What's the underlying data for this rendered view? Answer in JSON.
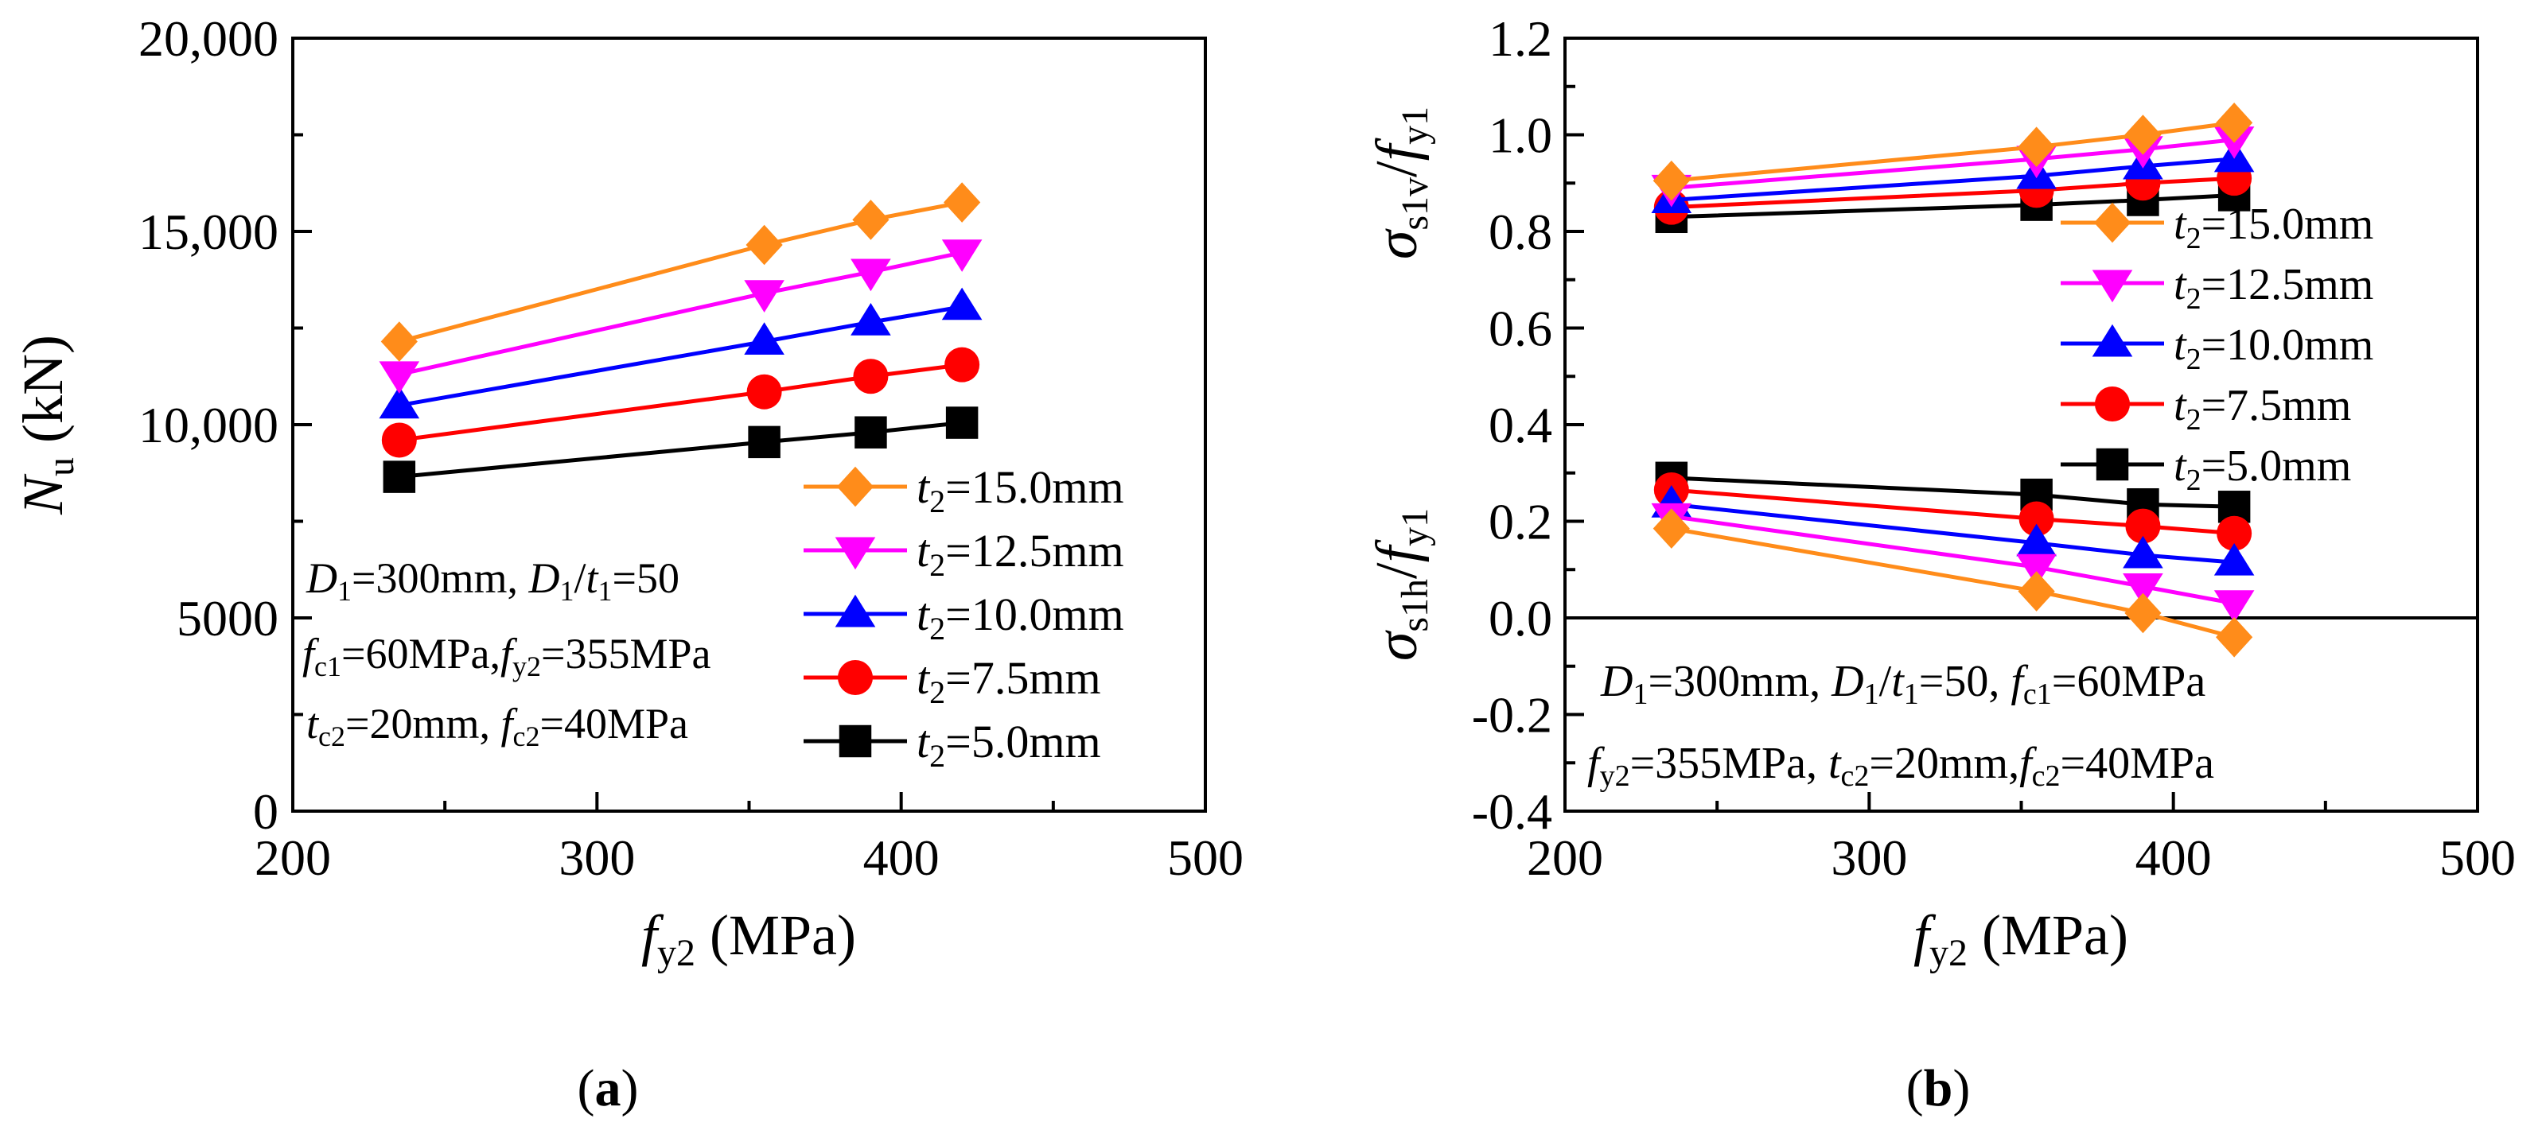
{
  "colors": {
    "t15": "#FF8C1A",
    "t125": "#FF00FF",
    "t10": "#0000FF",
    "t75": "#FF0000",
    "t5": "#000000"
  },
  "chart_data": [
    {
      "type": "line",
      "panel_label": "a",
      "xlabel": "f_y2 (MPa)",
      "ylabel": "N_u (kN)",
      "xlim": [
        200,
        500
      ],
      "ylim": [
        0,
        20000
      ],
      "xticks": [
        "200",
        "300",
        "400",
        "500"
      ],
      "yticks": [
        "0",
        "5000",
        "10,000",
        "15,000",
        "20,000"
      ],
      "x": [
        235,
        355,
        390,
        420
      ],
      "series": [
        {
          "name": "t2=15.0mm",
          "t2": "15.0mm",
          "color_key": "t15",
          "marker": "diamond",
          "values": [
            12150,
            14650,
            15300,
            15750
          ]
        },
        {
          "name": "t2=12.5mm",
          "t2": "12.5mm",
          "color_key": "t125",
          "marker": "triangle-down",
          "values": [
            11300,
            13400,
            13950,
            14450
          ]
        },
        {
          "name": "t2=10.0mm",
          "t2": "10.0mm",
          "color_key": "t10",
          "marker": "triangle-up",
          "values": [
            10500,
            12150,
            12650,
            13050
          ]
        },
        {
          "name": "t2=7.5mm",
          "t2": "7.5mm",
          "color_key": "t75",
          "marker": "circle",
          "values": [
            9600,
            10850,
            11250,
            11550
          ]
        },
        {
          "name": "t2=5.0mm",
          "t2": "5.0mm",
          "color_key": "t5",
          "marker": "square",
          "values": [
            8650,
            9550,
            9800,
            10050
          ]
        }
      ],
      "annotation": {
        "d1": "300mm",
        "d1t1": "50",
        "fc1": "60MPa",
        "fy2": "355MPa",
        "tc2": "20mm",
        "fc2": "40MPa"
      }
    },
    {
      "type": "line",
      "panel_label": "b",
      "xlabel": "f_y2 (MPa)",
      "ylabel_top": "σ_s1v/f_y1",
      "ylabel_bottom": "σ_s1h/f_y1",
      "xlim": [
        200,
        500
      ],
      "ylim": [
        -0.4,
        1.2
      ],
      "xticks": [
        "200",
        "300",
        "400",
        "500"
      ],
      "yticks": [
        "-0.4",
        "-0.2",
        "0.0",
        "0.2",
        "0.4",
        "0.6",
        "0.8",
        "1.0",
        "1.2"
      ],
      "x": [
        235,
        355,
        390,
        420
      ],
      "series_vertical": [
        {
          "name": "t2=15.0mm",
          "color_key": "t15",
          "marker": "diamond",
          "values": [
            0.905,
            0.975,
            1.0,
            1.025
          ]
        },
        {
          "name": "t2=12.5mm",
          "color_key": "t125",
          "marker": "triangle-down",
          "values": [
            0.89,
            0.95,
            0.97,
            0.99
          ]
        },
        {
          "name": "t2=10.0mm",
          "color_key": "t10",
          "marker": "triangle-up",
          "values": [
            0.865,
            0.915,
            0.935,
            0.95
          ]
        },
        {
          "name": "t2=7.5mm",
          "color_key": "t75",
          "marker": "circle",
          "values": [
            0.85,
            0.885,
            0.9,
            0.91
          ]
        },
        {
          "name": "t2=5.0mm",
          "color_key": "t5",
          "marker": "square",
          "values": [
            0.83,
            0.855,
            0.865,
            0.875
          ]
        }
      ],
      "series_hoop": [
        {
          "name": "t2=15.0mm",
          "color_key": "t15",
          "marker": "diamond",
          "values": [
            0.185,
            0.055,
            0.01,
            -0.04
          ]
        },
        {
          "name": "t2=12.5mm",
          "color_key": "t125",
          "marker": "triangle-down",
          "values": [
            0.21,
            0.105,
            0.065,
            0.03
          ]
        },
        {
          "name": "t2=10.0mm",
          "color_key": "t10",
          "marker": "triangle-up",
          "values": [
            0.235,
            0.155,
            0.13,
            0.115
          ]
        },
        {
          "name": "t2=7.5mm",
          "color_key": "t75",
          "marker": "circle",
          "values": [
            0.265,
            0.205,
            0.19,
            0.175
          ]
        },
        {
          "name": "t2=5.0mm",
          "color_key": "t5",
          "marker": "square",
          "values": [
            0.29,
            0.255,
            0.235,
            0.23
          ]
        }
      ],
      "annotation": {
        "d1": "300mm",
        "d1t1": "50",
        "fc1": "60MPa",
        "fy2": "355MPa",
        "tc2": "20mm",
        "fc2": "40MPa"
      }
    }
  ]
}
